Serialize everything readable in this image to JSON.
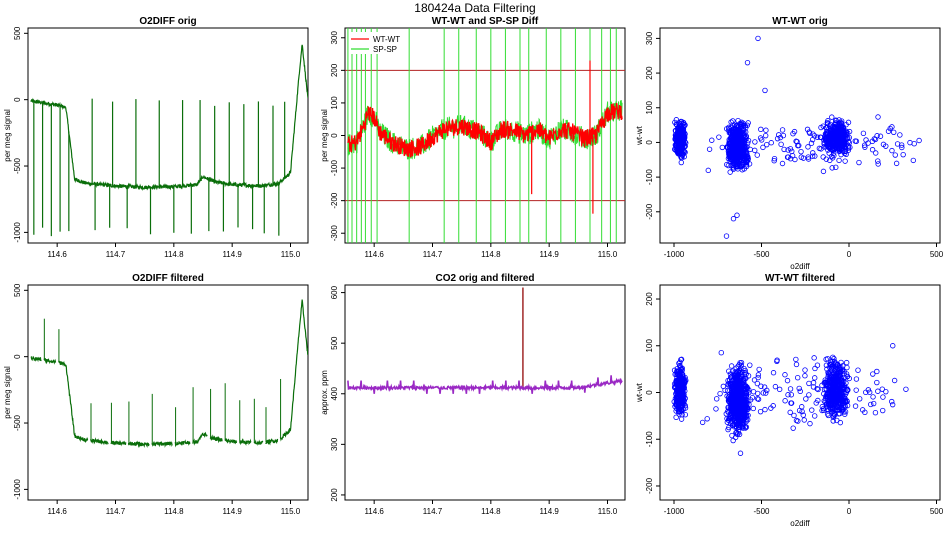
{
  "figure": {
    "title": "180424a   Data Filtering"
  },
  "colors": {
    "dark_green": "#0a6e0a",
    "red": "#ff0000",
    "bright_green": "#33dd33",
    "blue": "#0000ff",
    "purple": "#9a29c4",
    "brown": "#a02828",
    "hline": "#b22222"
  },
  "chart_data": [
    {
      "type": "line",
      "title": "O2DIFF orig",
      "xlabel": "",
      "ylabel": "per meg signal",
      "xlim": [
        114.55,
        115.03
      ],
      "ylim": [
        -1080,
        540
      ],
      "xticks": [
        "114.6",
        "114.7",
        "114.8",
        "114.9",
        "115.0"
      ],
      "yticks": [
        "500",
        "0",
        "-500",
        "-1000"
      ],
      "series": [
        {
          "baseline": [
            [
              114.555,
              -10
            ],
            [
              114.6,
              -40
            ],
            [
              114.615,
              -60
            ],
            [
              114.63,
              -600
            ],
            [
              114.65,
              -630
            ],
            [
              114.7,
              -650
            ],
            [
              114.75,
              -660
            ],
            [
              114.8,
              -655
            ],
            [
              114.84,
              -640
            ],
            [
              114.85,
              -580
            ],
            [
              114.87,
              -620
            ],
            [
              114.9,
              -640
            ],
            [
              114.95,
              -650
            ],
            [
              114.98,
              -630
            ],
            [
              115.0,
              -550
            ],
            [
              115.015,
              200
            ],
            [
              115.02,
              420
            ],
            [
              115.03,
              0
            ]
          ],
          "spikes_up": [
            114.66,
            114.695,
            114.735,
            114.775,
            114.815,
            114.845,
            114.87,
            114.895,
            114.92,
            114.945,
            114.97,
            114.99
          ],
          "spikes_down": [
            114.56,
            114.575,
            114.59,
            114.605,
            114.62,
            114.665,
            114.69,
            114.72,
            114.76,
            114.8,
            114.83,
            114.86,
            114.885,
            114.91,
            114.935,
            114.955,
            114.98
          ],
          "spike_up_level": -20,
          "spike_down_level": -1000
        }
      ]
    },
    {
      "type": "line",
      "title": "WT-WT and SP-SP Diff",
      "xlabel": "",
      "ylabel": "per meg signal",
      "xlim": [
        114.55,
        115.03
      ],
      "ylim": [
        -330,
        330
      ],
      "xticks": [
        "114.6",
        "114.7",
        "114.8",
        "114.9",
        "115.0"
      ],
      "yticks": [
        "300",
        "200",
        "100",
        "0",
        "-100",
        "-200",
        "-300"
      ],
      "hlines": [
        200,
        -200
      ],
      "legend": {
        "entries": [
          "WT-WT",
          "SP-SP"
        ],
        "position": "top-left"
      },
      "series": [
        {
          "name": "WT-WT",
          "trend": [
            [
              114.555,
              -30
            ],
            [
              114.57,
              -20
            ],
            [
              114.58,
              20
            ],
            [
              114.59,
              70
            ],
            [
              114.6,
              55
            ],
            [
              114.61,
              10
            ],
            [
              114.63,
              -20
            ],
            [
              114.655,
              -40
            ],
            [
              114.68,
              -35
            ],
            [
              114.7,
              -5
            ],
            [
              114.72,
              20
            ],
            [
              114.75,
              30
            ],
            [
              114.78,
              10
            ],
            [
              114.8,
              -20
            ],
            [
              114.82,
              20
            ],
            [
              114.84,
              15
            ],
            [
              114.86,
              0
            ],
            [
              114.88,
              20
            ],
            [
              114.9,
              -10
            ],
            [
              114.92,
              20
            ],
            [
              114.94,
              10
            ],
            [
              114.96,
              -10
            ],
            [
              114.98,
              0
            ],
            [
              115.0,
              70
            ],
            [
              115.02,
              75
            ]
          ],
          "spikes": [
            [
              114.87,
              -180
            ],
            [
              114.97,
              230
            ],
            [
              114.975,
              -240
            ]
          ]
        },
        {
          "name": "SP-SP",
          "spike_xs": [
            114.555,
            114.562,
            114.57,
            114.578,
            114.585,
            114.595,
            114.605,
            114.66,
            114.72,
            114.745,
            114.775,
            114.8,
            114.825,
            114.85,
            114.865,
            114.895,
            114.92,
            114.945,
            114.97,
            114.99,
            115.005,
            115.015
          ]
        }
      ]
    },
    {
      "type": "scatter",
      "title": "WT-WT orig",
      "xlabel": "o2diff",
      "ylabel": "wt-wt",
      "xlim": [
        -1080,
        520
      ],
      "ylim": [
        -290,
        330
      ],
      "xticks": [
        "-1000",
        "-500",
        "0",
        "500"
      ],
      "yticks": [
        "300",
        "200",
        "100",
        "0",
        "-100",
        "-200"
      ],
      "clusters": [
        {
          "x": [
            -1000,
            -930
          ],
          "y": [
            -70,
            80
          ],
          "n": 260
        },
        {
          "x": [
            -700,
            -570
          ],
          "y": [
            -100,
            80
          ],
          "n": 520
        },
        {
          "x": [
            -150,
            10
          ],
          "y": [
            -50,
            80
          ],
          "n": 340
        },
        {
          "x": [
            -900,
            450
          ],
          "y": [
            -100,
            90
          ],
          "n": 140
        }
      ],
      "points": [
        [
          -520,
          300
        ],
        [
          -580,
          230
        ],
        [
          -640,
          -210
        ],
        [
          -660,
          -220
        ],
        [
          -700,
          -270
        ],
        [
          -480,
          150
        ]
      ]
    },
    {
      "type": "line",
      "title": "O2DIFF filtered",
      "xlabel": "",
      "ylabel": "per meg signal",
      "xlim": [
        114.55,
        115.03
      ],
      "ylim": [
        -1080,
        540
      ],
      "xticks": [
        "114.6",
        "114.7",
        "114.8",
        "114.9",
        "115.0"
      ],
      "yticks": [
        "500",
        "0",
        "-500",
        "-1000"
      ],
      "series": [
        {
          "baseline": [
            [
              114.555,
              -10
            ],
            [
              114.6,
              -40
            ],
            [
              114.615,
              -60
            ],
            [
              114.63,
              -600
            ],
            [
              114.65,
              -630
            ],
            [
              114.7,
              -650
            ],
            [
              114.75,
              -660
            ],
            [
              114.8,
              -655
            ],
            [
              114.84,
              -640
            ],
            [
              114.85,
              -580
            ],
            [
              114.87,
              -620
            ],
            [
              114.9,
              -640
            ],
            [
              114.95,
              -650
            ],
            [
              114.98,
              -630
            ],
            [
              115.0,
              -550
            ],
            [
              115.015,
              200
            ],
            [
              115.02,
              420
            ],
            [
              115.03,
              0
            ]
          ],
          "gaps": [
            114.575,
            114.6,
            114.655,
            114.69,
            114.72,
            114.76,
            114.8,
            114.83,
            114.86,
            114.885,
            114.91,
            114.935,
            114.955,
            114.98
          ]
        }
      ]
    },
    {
      "type": "line",
      "title": "CO2 orig and filtered",
      "xlabel": "",
      "ylabel": "approx. ppm",
      "xlim": [
        114.55,
        115.03
      ],
      "ylim": [
        190,
        615
      ],
      "xticks": [
        "114.6",
        "114.7",
        "114.8",
        "114.9",
        "115.0"
      ],
      "yticks": [
        "600",
        "500",
        "400",
        "300",
        "200"
      ],
      "series": [
        {
          "name": "orig",
          "spike": [
            114.855,
            610
          ]
        },
        {
          "name": "filtered",
          "base": 412,
          "end": 425
        }
      ]
    },
    {
      "type": "scatter",
      "title": "WT-WT filtered",
      "xlabel": "o2diff",
      "ylabel": "wt-wt",
      "xlim": [
        -1080,
        520
      ],
      "ylim": [
        -230,
        230
      ],
      "xticks": [
        "-1000",
        "-500",
        "0",
        "500"
      ],
      "yticks": [
        "200",
        "100",
        "0",
        "-100",
        "-200"
      ],
      "clusters": [
        {
          "x": [
            -1000,
            -930
          ],
          "y": [
            -70,
            80
          ],
          "n": 300
        },
        {
          "x": [
            -700,
            -570
          ],
          "y": [
            -110,
            80
          ],
          "n": 600
        },
        {
          "x": [
            -150,
            10
          ],
          "y": [
            -80,
            90
          ],
          "n": 380
        },
        {
          "x": [
            -900,
            450
          ],
          "y": [
            -100,
            95
          ],
          "n": 140
        }
      ],
      "points": [
        [
          -620,
          -130
        ],
        [
          -300,
          60
        ],
        [
          250,
          100
        ]
      ]
    }
  ]
}
